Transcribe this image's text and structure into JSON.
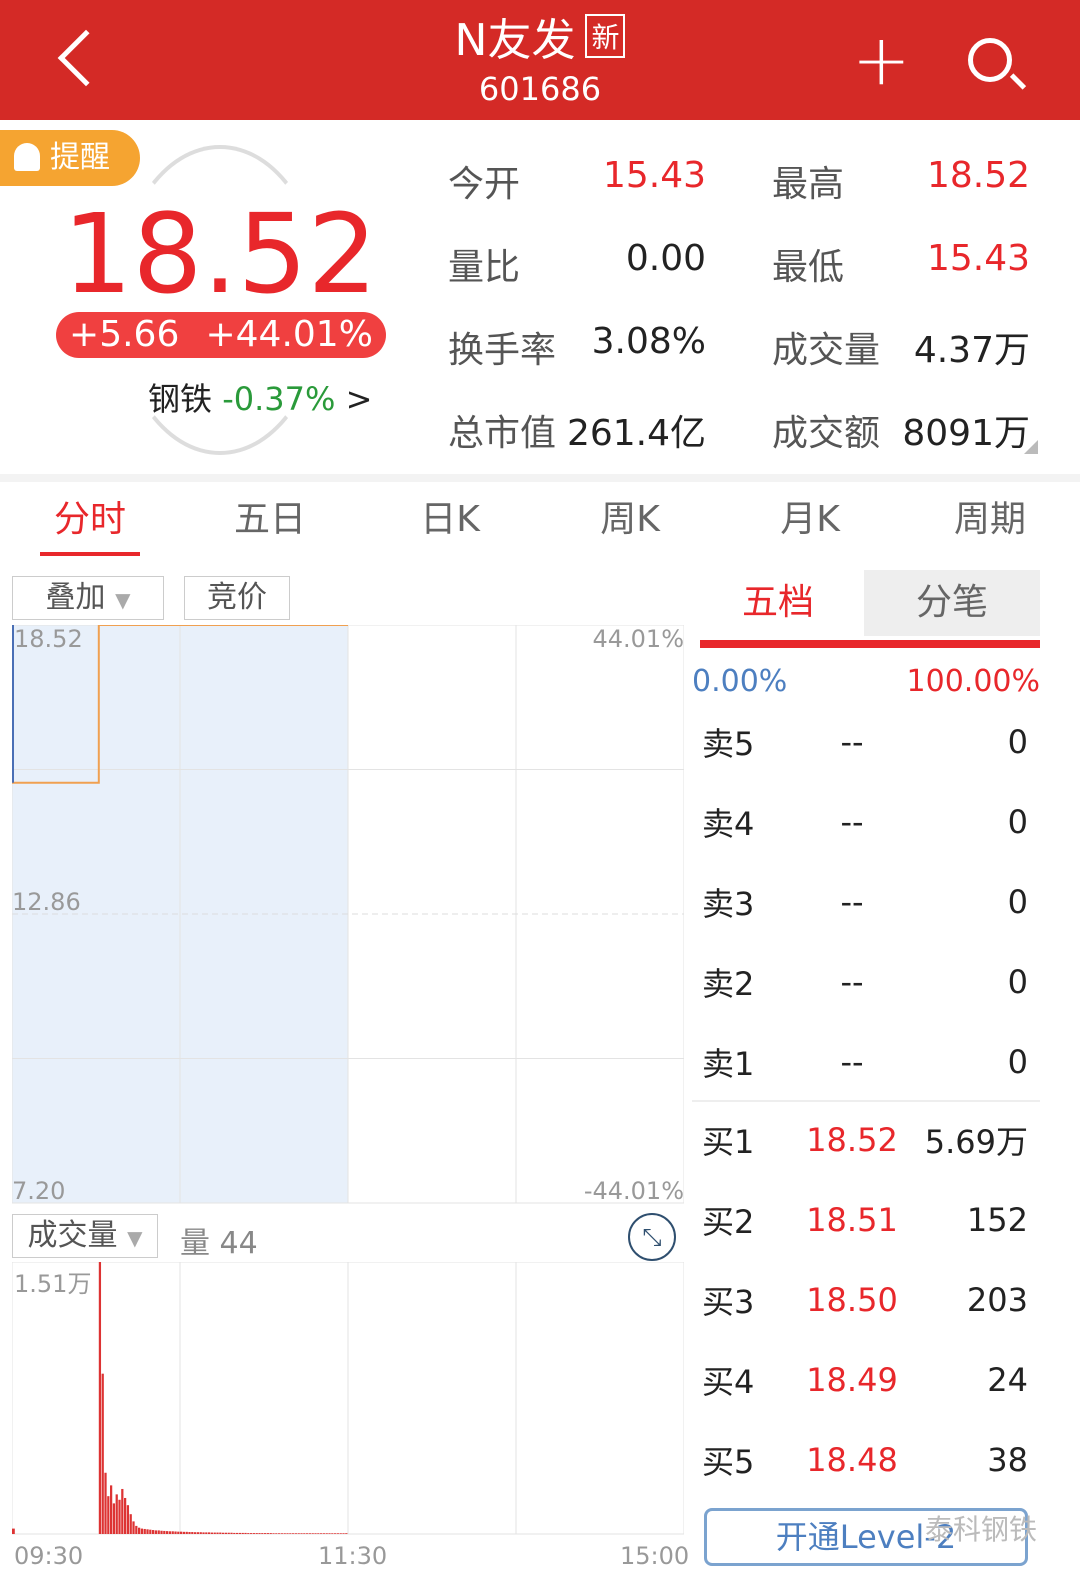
{
  "header": {
    "title": "N友发",
    "badge": "新",
    "code": "601686"
  },
  "quote": {
    "remind": "提醒",
    "price": "18.52",
    "change": "+5.66",
    "change_pct": "+44.01%",
    "industry": "钢铁",
    "industry_pct": "-0.37%",
    "industry_arrow": ">"
  },
  "stats": [
    {
      "label": "今开",
      "value": "15.43",
      "color": "red"
    },
    {
      "label": "最高",
      "value": "18.52",
      "color": "red"
    },
    {
      "label": "量比",
      "value": "0.00",
      "color": "black"
    },
    {
      "label": "最低",
      "value": "15.43",
      "color": "red"
    },
    {
      "label": "换手率",
      "value": "3.08%",
      "color": "black"
    },
    {
      "label": "成交量",
      "value": "4.37万",
      "color": "black"
    },
    {
      "label": "总市值",
      "value": "261.4亿",
      "color": "black"
    },
    {
      "label": "成交额",
      "value": "8091万",
      "color": "black"
    }
  ],
  "tabs": [
    "分时",
    "五日",
    "日K",
    "周K",
    "月K",
    "周期"
  ],
  "chart_controls": {
    "overlay": "叠加",
    "auction": "竞价",
    "volume_select": "成交量",
    "volume_readout": "量 44"
  },
  "chart_data": {
    "type": "line",
    "price_axis": {
      "max": "18.52",
      "mid": "12.86",
      "min": "7.20",
      "ylim": [
        7.2,
        18.52
      ]
    },
    "pct_axis": {
      "max": "44.01%",
      "min": "-44.01%"
    },
    "x_ticks": [
      "09:30",
      "11:30",
      "15:00"
    ],
    "price_series": [
      {
        "t": "09:30",
        "v": 15.43
      },
      {
        "t": "10:00",
        "v": 15.43
      },
      {
        "t": "10:01",
        "v": 18.52
      },
      {
        "t": "11:30",
        "v": 18.52
      }
    ],
    "volume_axis": {
      "max_label": "1.51万",
      "max": 15100
    },
    "volume_start": "10:01",
    "volume_first": {
      "t": "09:30",
      "v": 300
    },
    "volume": [
      15100,
      8900,
      3400,
      2100,
      2700,
      1700,
      2200,
      1900,
      2500,
      2000,
      1600,
      1100,
      700,
      450,
      350,
      300,
      280,
      260,
      240,
      220,
      200,
      200,
      180,
      170,
      160,
      150,
      150,
      140,
      130,
      130,
      120,
      120,
      110,
      110,
      100,
      100,
      100,
      90,
      90,
      90,
      80,
      80,
      80,
      80,
      70,
      70,
      70,
      70,
      60,
      60,
      60,
      60,
      60,
      50,
      50,
      50,
      50,
      50,
      50,
      50,
      50,
      50,
      40,
      40,
      40,
      40,
      40,
      40,
      40,
      40,
      40,
      40,
      40,
      40,
      40,
      40,
      40,
      40,
      40,
      40,
      40,
      40,
      40,
      40,
      40,
      40,
      40,
      40,
      44
    ]
  },
  "order_book": {
    "tab_active": "五档",
    "tab_other": "分笔",
    "left_pct": "0.00%",
    "right_pct": "100.00%",
    "sell": [
      {
        "name": "卖5",
        "price": "--",
        "vol": "0"
      },
      {
        "name": "卖4",
        "price": "--",
        "vol": "0"
      },
      {
        "name": "卖3",
        "price": "--",
        "vol": "0"
      },
      {
        "name": "卖2",
        "price": "--",
        "vol": "0"
      },
      {
        "name": "卖1",
        "price": "--",
        "vol": "0"
      }
    ],
    "buy": [
      {
        "name": "买1",
        "price": "18.52",
        "vol": "5.69万"
      },
      {
        "name": "买2",
        "price": "18.51",
        "vol": "152"
      },
      {
        "name": "买3",
        "price": "18.50",
        "vol": "203"
      },
      {
        "name": "买4",
        "price": "18.49",
        "vol": "24"
      },
      {
        "name": "买5",
        "price": "18.48",
        "vol": "38"
      }
    ],
    "level2_button": "开通Level-2"
  },
  "watermark": "泰科钢铁",
  "colors": {
    "red": "#e8272b",
    "header": "#d42a26",
    "green": "#2a9a3a",
    "blue": "#4d7fc0",
    "line": "#f0a050"
  }
}
